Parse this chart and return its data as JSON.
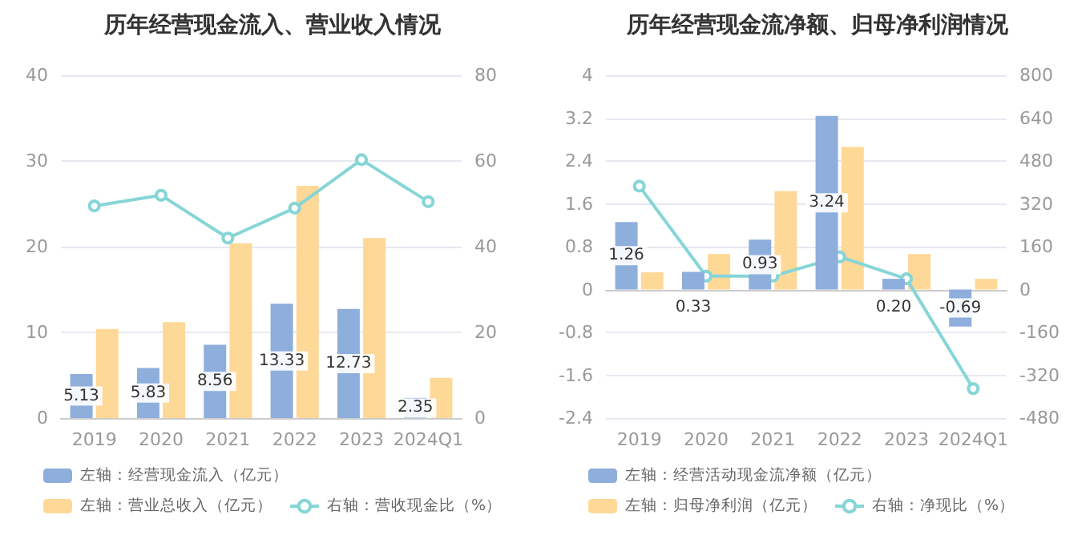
{
  "chart_data": [
    {
      "type": "bar",
      "title": "历年经营现金流入、营业收入情况",
      "categories": [
        "2019",
        "2020",
        "2021",
        "2022",
        "2023",
        "2024Q1"
      ],
      "series": [
        {
          "name": "左轴：经营现金流入（亿元）",
          "color": "#8eaedc",
          "values": [
            5.13,
            5.83,
            8.56,
            13.33,
            12.73,
            2.35
          ],
          "value_labels": [
            "5.13",
            "5.83",
            "8.56",
            "13.33",
            "12.73",
            "2.35"
          ]
        },
        {
          "name": "左轴：营业总收入（亿元）",
          "color": "#fed896",
          "values": [
            10.4,
            11.2,
            20.4,
            27.1,
            21.0,
            4.7
          ]
        },
        {
          "name": "右轴：营收现金比（%）",
          "type": "line",
          "axis": "y2",
          "color": "#86d5d7",
          "values": [
            49.5,
            52,
            42,
            49,
            60.3,
            50.5
          ]
        }
      ],
      "ylim": [
        0,
        40
      ],
      "yticks": [
        0,
        10,
        20,
        30,
        40
      ],
      "y2lim": [
        0,
        80
      ],
      "y2ticks": [
        0,
        20,
        40,
        60,
        80
      ],
      "grid": "y",
      "legend": "bottom",
      "marker": "circle"
    },
    {
      "type": "bar",
      "title": "历年经营现金流净额、归母净利润情况",
      "categories": [
        "2019",
        "2020",
        "2021",
        "2022",
        "2023",
        "2024Q1"
      ],
      "series": [
        {
          "name": "左轴：经营活动现金流净额（亿元）",
          "color": "#8eaedc",
          "values": [
            1.26,
            0.33,
            0.93,
            3.24,
            0.2,
            -0.69
          ],
          "value_labels": [
            "1.26",
            "0.33",
            "0.93",
            "3.24",
            "0.20",
            "-0.69"
          ]
        },
        {
          "name": "左轴：归母净利润（亿元）",
          "color": "#fed896",
          "values": [
            0.32,
            0.66,
            1.84,
            2.66,
            0.66,
            0.2
          ]
        },
        {
          "name": "右轴：净现比（%）",
          "type": "line",
          "axis": "y2",
          "color": "#86d5d7",
          "values": [
            386,
            50,
            50,
            122,
            40,
            -370
          ]
        }
      ],
      "ylim": [
        -2.4,
        4
      ],
      "yticks": [
        -2.4,
        -1.6,
        -0.8,
        0,
        0.8,
        1.6,
        2.4,
        3.2,
        4
      ],
      "y2lim": [
        -480,
        800
      ],
      "y2ticks": [
        -480,
        -320,
        -160,
        0,
        160,
        320,
        480,
        640,
        800
      ],
      "grid": "y",
      "legend": "bottom",
      "marker": "circle"
    }
  ]
}
